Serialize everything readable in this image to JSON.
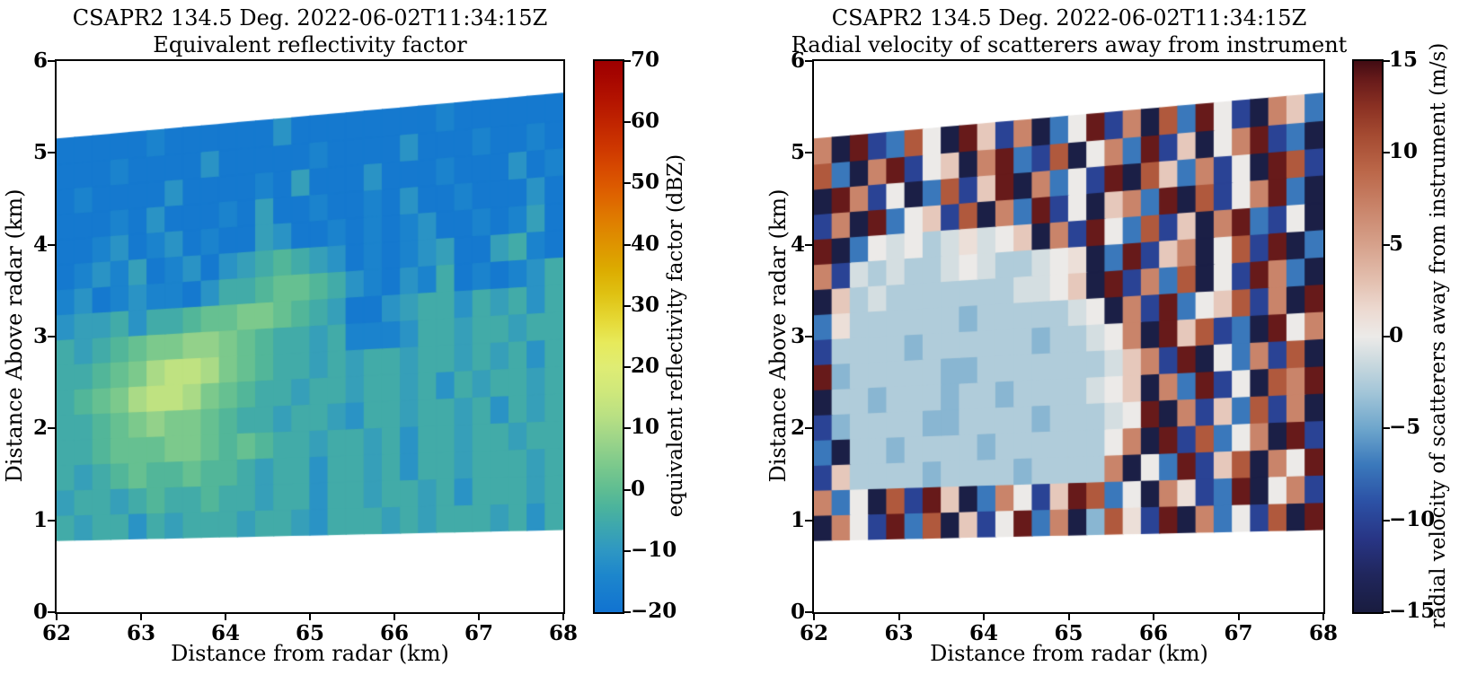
{
  "chart_data": [
    {
      "type": "heatmap",
      "title": "CSAPR2 134.5 Deg. 2022-06-02T11:34:15Z",
      "subtitle": "Equivalent reflectivity factor",
      "xlabel": "Distance from radar (km)",
      "ylabel": "Distance Above radar  (km)",
      "x_range": [
        62,
        68
      ],
      "y_range": [
        0,
        6
      ],
      "xtick_labels": [
        "62",
        "63",
        "64",
        "65",
        "66",
        "67",
        "68"
      ],
      "ytick_labels": [
        "0",
        "1",
        "2",
        "3",
        "4",
        "5",
        "6"
      ],
      "colorbar": {
        "label": "equivalent reflectivity factor (dBZ)",
        "vmin": -20,
        "vmax": 70,
        "tick_values": [
          70,
          60,
          50,
          40,
          30,
          20,
          10,
          0,
          -10,
          -20
        ],
        "tick_labels": [
          "70",
          "60",
          "50",
          "40",
          "30",
          "20",
          "10",
          "0",
          "−10",
          "−20"
        ]
      },
      "colormap_stops": [
        [
          -20,
          "#1173d1"
        ],
        [
          -14,
          "#1d86cc"
        ],
        [
          -10,
          "#2e97c3"
        ],
        [
          -6,
          "#3da7ae"
        ],
        [
          -3,
          "#4bb39d"
        ],
        [
          0,
          "#5fbd92"
        ],
        [
          4,
          "#7cc98c"
        ],
        [
          8,
          "#9bd489"
        ],
        [
          12,
          "#b9e083"
        ],
        [
          16,
          "#cfe87b"
        ],
        [
          20,
          "#dfec74"
        ],
        [
          24,
          "#e7ea5b"
        ],
        [
          28,
          "#e5d733"
        ],
        [
          32,
          "#dfc112"
        ],
        [
          36,
          "#dcab00"
        ],
        [
          40,
          "#de9400"
        ],
        [
          44,
          "#df7d00"
        ],
        [
          48,
          "#de6300"
        ],
        [
          52,
          "#d84c00"
        ],
        [
          56,
          "#cd3600"
        ],
        [
          60,
          "#c02400"
        ],
        [
          64,
          "#b21200"
        ],
        [
          68,
          "#a40400"
        ],
        [
          70,
          "#9e0000"
        ]
      ],
      "beam_extent_km": {
        "bottom_left": 0.78,
        "bottom_right": 0.9,
        "top_left": 5.15,
        "top_right": 5.65
      },
      "grid": {
        "cols": 28,
        "rows": 16,
        "units": "dBZ",
        "value_map": {
          "a": -18,
          "b": -15,
          "c": -11,
          "d": -8,
          "e": -5,
          "f": -2,
          "g": 1,
          "h": 4,
          "i": 7,
          "j": 10,
          "k": 13,
          "m": 16
        },
        "rows_bottom_to_top": [
          "edeecedeeedeedceeededeeedece",
          "deedefeefeedeeceedeedeceeede",
          "edefgffgffedeeceedeceedeeede",
          "eefggghhgfgfeedeedeceedeedee",
          "eefghihhgfeedeedceedeedecede",
          "efghjkkjhgfeedeedeedecedeede",
          "eefghjkkjhgfeededeedeededece",
          "edefghhiihgfeedebbbceedeedee",
          "cddeceefgghhgfedaacdeecedece",
          "bcabcbbaceefggfecbacbeababce",
          "abcbdabcacdefedcababcdaadeba",
          "aabcabcabaadcaabababcaababda",
          "aaabacaaabadaabaabacaabaaaca",
          "abaaaacaaaabadaaacaaabaaacab",
          "aaabaaaacaaaaabaaaacaaabaaba",
          "aaaaabaaaaaacaaaaaaaabaaaaaa"
        ]
      }
    },
    {
      "type": "heatmap",
      "title": "CSAPR2 134.5 Deg. 2022-06-02T11:34:15Z",
      "subtitle": "Radial velocity of scatterers away from instrument",
      "xlabel": "Distance from radar (km)",
      "ylabel": "Distance Above radar  (km)",
      "x_range": [
        62,
        68
      ],
      "y_range": [
        0,
        6
      ],
      "xtick_labels": [
        "62",
        "63",
        "64",
        "65",
        "66",
        "67",
        "68"
      ],
      "ytick_labels": [
        "0",
        "1",
        "2",
        "3",
        "4",
        "5",
        "6"
      ],
      "colorbar": {
        "label": "radial velocity of scatterers away from instrument (m/s)",
        "vmin": -15,
        "vmax": 15,
        "tick_values": [
          15,
          10,
          5,
          0,
          -5,
          -10,
          -15
        ],
        "tick_labels": [
          "15",
          "10",
          "5",
          "0",
          "−5",
          "−10",
          "−15"
        ]
      },
      "colormap_stops": [
        [
          -15,
          "#191c3f"
        ],
        [
          -13,
          "#20265c"
        ],
        [
          -11,
          "#283585"
        ],
        [
          -9,
          "#2c51a5"
        ],
        [
          -7,
          "#3a78bb"
        ],
        [
          -5,
          "#6ea6cc"
        ],
        [
          -3,
          "#a4c6d8"
        ],
        [
          -1.5,
          "#c8d8de"
        ],
        [
          0,
          "#eceae8"
        ],
        [
          1.5,
          "#ecd9d0"
        ],
        [
          3,
          "#e3c0b0"
        ],
        [
          5,
          "#d6a18b"
        ],
        [
          7,
          "#c9846a"
        ],
        [
          9,
          "#bb6749"
        ],
        [
          11,
          "#a44a31"
        ],
        [
          12.5,
          "#8b3123"
        ],
        [
          14,
          "#671a1a"
        ],
        [
          15,
          "#420c13"
        ]
      ],
      "beam_extent_km": {
        "bottom_left": 0.78,
        "bottom_right": 0.9,
        "top_left": 5.15,
        "top_right": 5.65
      },
      "grid": {
        "cols": 28,
        "rows": 16,
        "units": "m/s",
        "value_map": {
          "A": -14.5,
          "B": -10,
          "C": -7,
          "D": -4,
          "E": -2.5,
          "F": -1,
          "G": 0,
          "H": 1,
          "I": 2.5,
          "J": 4,
          "K": 7,
          "L": 10,
          "M": 14
        },
        "rows_bottom_to_top": [
          "AKGBMCLAIBGMCKADLHBMAKCGBLAM",
          "KCGALBMIACKGBIMLCGAKHBCMAGKB",
          "BIEEEEDEEEEDEEEEKAGCMBILAKGM",
          "CAEEDEEEEDEEEEEEGKAMBLCGKAMB",
          "BDEEEEDDEEEEDEEEFGMAKBICLBKA",
          "AEEDEEEDEEDEEEEFGIAKCMBGALKM",
          "MDEEEEEDDEEEEEEEFIKBMAGCKBLA",
          "BEEEEDEEEEEEDEEFGKAMILBCAMGK",
          "CHEEEEEEDEEEEEFGAKBMCGILBKAM",
          "AIEFEEEEEEEFFGIAMBKCLAGBMKCA",
          "KBFEFEEFGFEEFGHACMBIKAGLBMAC",
          "MACGFGEFHFGIAKBMGCLBIAKMCBGA",
          "BKAMCGIBLAKCMBGAIKCMALBGKMCA",
          "AMKBGACLBIMAKCGBMALICKBGAMLB",
          "LCAKMBGIAKMCBLAGKCMBIAGKMBCA",
          "KAMBCLGAMIBKACGMBKALCMGBAKIC"
        ]
      }
    }
  ]
}
